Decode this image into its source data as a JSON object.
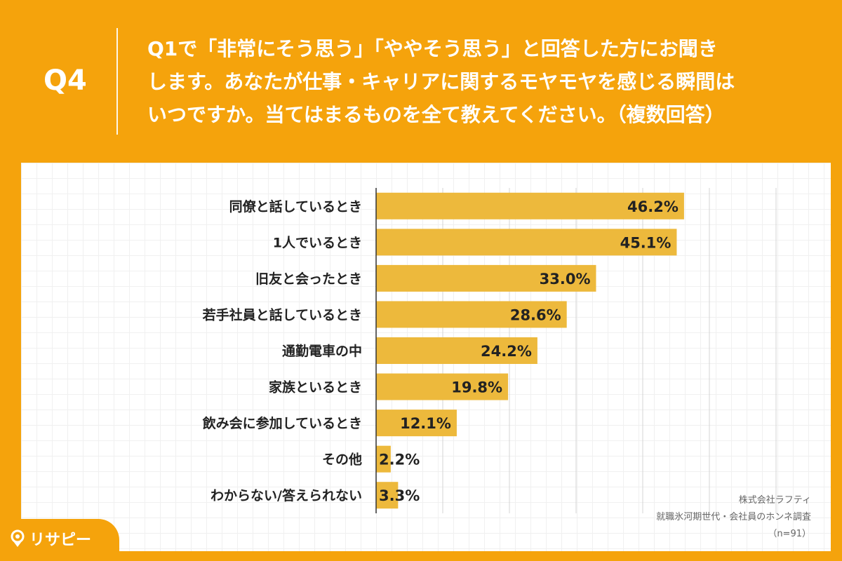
{
  "header": {
    "q_label": "Q4",
    "question_lines": [
      "Q1で「非常にそう思う」「ややそう思う」と回答した方にお聞き",
      "します。あなたが仕事・キャリアに関するモヤモヤを感じる瞬間は",
      "いつですか。当てはまるものを全て教えてください。（複数回答）"
    ]
  },
  "credit": {
    "company": "株式会社ラフティ",
    "survey": "就職氷河期世代・会社員のホンネ調査",
    "sample": "（n=91）"
  },
  "logo": {
    "text": "リサピー",
    "icon": "map-pin-icon"
  },
  "colors": {
    "background": "#F5A30C",
    "bar": "#EDB93C",
    "text": "#222222"
  },
  "chart_data": {
    "type": "bar",
    "orientation": "horizontal",
    "categories": [
      "同僚と話しているとき",
      "1人でいるとき",
      "旧友と会ったとき",
      "若手社員と話しているとき",
      "通勤電車の中",
      "家族といるとき",
      "飲み会に参加しているとき",
      "その他",
      "わからない/答えられない"
    ],
    "values": [
      46.2,
      45.1,
      33.0,
      28.6,
      24.2,
      19.8,
      12.1,
      2.2,
      3.3
    ],
    "value_labels": [
      "46.2%",
      "45.1%",
      "33.0%",
      "28.6%",
      "24.2%",
      "19.8%",
      "12.1%",
      "2.2%",
      "3.3%"
    ],
    "unit": "%",
    "xlim": [
      0,
      60
    ],
    "grid": true,
    "title": "",
    "xlabel": "",
    "ylabel": ""
  }
}
